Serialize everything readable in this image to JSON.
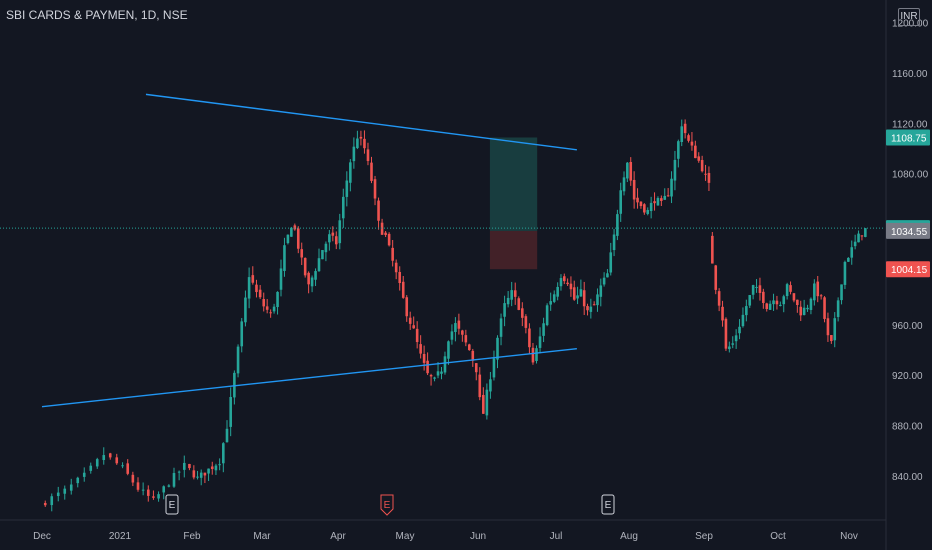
{
  "header": {
    "symbol_title": "SBI CARDS & PAYMEN, 1D, NSE",
    "currency": "INR"
  },
  "colors": {
    "background": "#131722",
    "up": "#26a69a",
    "down": "#ef5350",
    "trendline": "#2196f3",
    "target_zone": "#1b4b4a",
    "stop_zone": "#4b2329",
    "axis_text": "#b2b5be"
  },
  "chart_data": {
    "type": "candlestick",
    "title": "SBI CARDS & PAYMEN, 1D, NSE",
    "ylabel": "INR",
    "ylim": [
      805,
      1210
    ],
    "y_ticks": [
      "1200.00",
      "1160.00",
      "1120.00",
      "1080.00",
      "960.00",
      "920.00",
      "880.00",
      "840.00"
    ],
    "x_ticks": [
      "Dec",
      "2021",
      "Feb",
      "Mar",
      "Apr",
      "May",
      "Jun",
      "Jul",
      "Aug",
      "Sep",
      "Oct",
      "Nov"
    ],
    "grid": false,
    "price_labels": [
      {
        "value": "1108.75",
        "price": 1108.75,
        "role": "target",
        "color": "#26a69a"
      },
      {
        "value": "1036.75",
        "price": 1036.75,
        "role": "last",
        "color": "#26a69a"
      },
      {
        "value": "1034.55",
        "price": 1034.55,
        "role": "entry",
        "color": "#787b86"
      },
      {
        "value": "1004.15",
        "price": 1004.15,
        "role": "stop",
        "color": "#ef5350"
      }
    ],
    "earnings_markers": [
      {
        "label": "E",
        "month": "Feb"
      },
      {
        "label": "E",
        "month": "Apr"
      },
      {
        "label": "E",
        "month": "Jul"
      }
    ],
    "trendlines": [
      {
        "name": "resistance",
        "from": {
          "date": "2021-01-25",
          "price": 1143
        },
        "to": {
          "date": "2021-09-10",
          "price": 1099
        }
      },
      {
        "name": "support",
        "from": {
          "date": "2020-12-01",
          "price": 895
        },
        "to": {
          "date": "2021-09-10",
          "price": 941
        }
      }
    ],
    "position": {
      "type": "long",
      "start": "2021-07-26",
      "end": "2021-08-20",
      "entry": 1034.55,
      "target": 1108.75,
      "stop": 1004.15
    },
    "last_price": 1036.75,
    "segments": [
      {
        "start": 817,
        "vol": 6,
        "points": [
          [
            0,
            817
          ],
          [
            4,
            828
          ],
          [
            7,
            840
          ],
          [
            10,
            857
          ],
          [
            13,
            846
          ],
          [
            16,
            830
          ],
          [
            19,
            820
          ],
          [
            22,
            835
          ],
          [
            25,
            848
          ],
          [
            28,
            838
          ],
          [
            31,
            845
          ],
          [
            34,
            852
          ]
        ]
      },
      {
        "start": 852,
        "vol": 7,
        "points": [
          [
            0,
            852
          ],
          [
            2,
            880
          ],
          [
            4,
            920
          ],
          [
            6,
            960
          ],
          [
            8,
            1000
          ],
          [
            10,
            985
          ],
          [
            12,
            975
          ],
          [
            14,
            968
          ],
          [
            16,
            985
          ],
          [
            18,
            1020
          ],
          [
            20,
            1040
          ],
          [
            21,
            1035
          ],
          [
            23,
            1010
          ],
          [
            25,
            990
          ],
          [
            27,
            1005
          ],
          [
            29,
            1020
          ],
          [
            31,
            1030
          ],
          [
            33,
            1025
          ],
          [
            35,
            1060
          ],
          [
            37,
            1090
          ],
          [
            39,
            1110
          ],
          [
            41,
            1100
          ],
          [
            43,
            1075
          ],
          [
            45,
            1040
          ],
          [
            47,
            1030
          ],
          [
            49,
            1010
          ],
          [
            51,
            990
          ],
          [
            53,
            970
          ],
          [
            55,
            955
          ],
          [
            57,
            935
          ],
          [
            59,
            920
          ],
          [
            61,
            915
          ],
          [
            63,
            925
          ],
          [
            65,
            950
          ],
          [
            67,
            960
          ],
          [
            69,
            950
          ],
          [
            71,
            940
          ],
          [
            73,
            925
          ],
          [
            74,
            900
          ],
          [
            75,
            890
          ],
          [
            77,
            920
          ],
          [
            79,
            950
          ],
          [
            81,
            975
          ],
          [
            83,
            985
          ],
          [
            85,
            975
          ],
          [
            87,
            955
          ],
          [
            89,
            930
          ],
          [
            91,
            950
          ],
          [
            93,
            975
          ],
          [
            95,
            985
          ],
          [
            97,
            1000
          ],
          [
            99,
            995
          ],
          [
            101,
            980
          ],
          [
            103,
            985
          ],
          [
            105,
            970
          ],
          [
            107,
            975
          ],
          [
            109,
            990
          ],
          [
            111,
            1000
          ],
          [
            113,
            1030
          ],
          [
            115,
            1070
          ],
          [
            117,
            1090
          ],
          [
            119,
            1060
          ],
          [
            121,
            1055
          ],
          [
            123,
            1050
          ],
          [
            125,
            1060
          ],
          [
            127,
            1055
          ],
          [
            129,
            1065
          ],
          [
            131,
            1090
          ],
          [
            133,
            1120
          ],
          [
            135,
            1105
          ],
          [
            137,
            1095
          ],
          [
            139,
            1085
          ],
          [
            141,
            1070
          ]
        ]
      },
      {
        "start": 1030,
        "vol": 6,
        "points": [
          [
            0,
            1030
          ],
          [
            2,
            990
          ],
          [
            4,
            965
          ],
          [
            5,
            940
          ],
          [
            7,
            945
          ],
          [
            9,
            960
          ],
          [
            11,
            975
          ],
          [
            13,
            990
          ],
          [
            15,
            985
          ],
          [
            17,
            975
          ],
          [
            19,
            980
          ],
          [
            21,
            978
          ],
          [
            23,
            990
          ],
          [
            25,
            980
          ],
          [
            27,
            970
          ],
          [
            29,
            975
          ],
          [
            31,
            990
          ],
          [
            33,
            980
          ],
          [
            35,
            950
          ],
          [
            36,
            945
          ],
          [
            38,
            980
          ],
          [
            40,
            1010
          ],
          [
            42,
            1020
          ],
          [
            44,
            1030
          ],
          [
            46,
            1036.75
          ]
        ]
      }
    ]
  }
}
